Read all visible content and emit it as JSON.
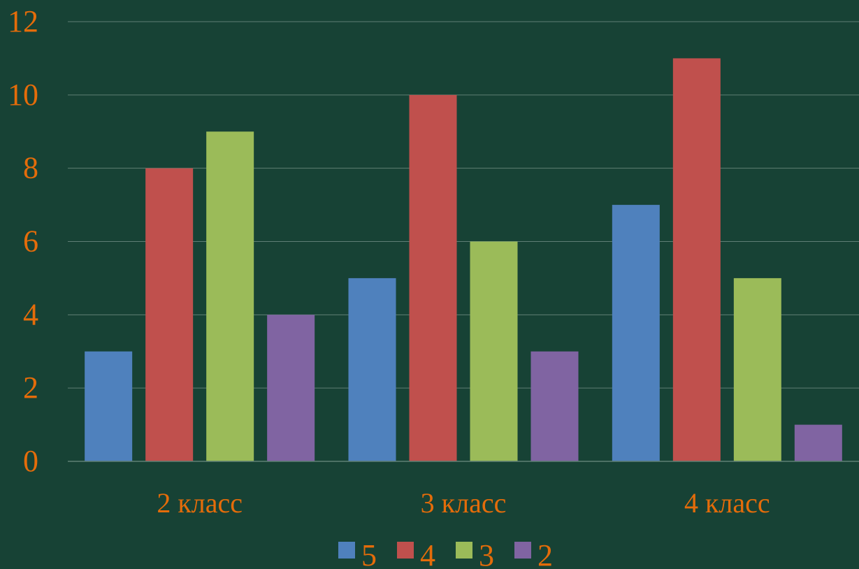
{
  "colors": {
    "background": "#174235",
    "gridline": "#5f7f75",
    "text": "#e46c0a"
  },
  "chart_data": {
    "type": "bar",
    "title": "",
    "xlabel": "",
    "ylabel": "",
    "categories": [
      "2 класс",
      "3 класс",
      "4 класс"
    ],
    "series": [
      {
        "name": "5",
        "values": [
          3,
          5,
          7
        ],
        "color": "#4f81bd"
      },
      {
        "name": "4",
        "values": [
          8,
          10,
          11
        ],
        "color": "#c0504d"
      },
      {
        "name": "3",
        "values": [
          9,
          6,
          5
        ],
        "color": "#9bbb59"
      },
      {
        "name": "2",
        "values": [
          4,
          3,
          1
        ],
        "color": "#8064a2"
      }
    ],
    "ylim": [
      0,
      12
    ],
    "y_ticks": [
      "0",
      "2",
      "4",
      "6",
      "8",
      "10",
      "12"
    ],
    "grid": true,
    "legend_position": "bottom"
  }
}
